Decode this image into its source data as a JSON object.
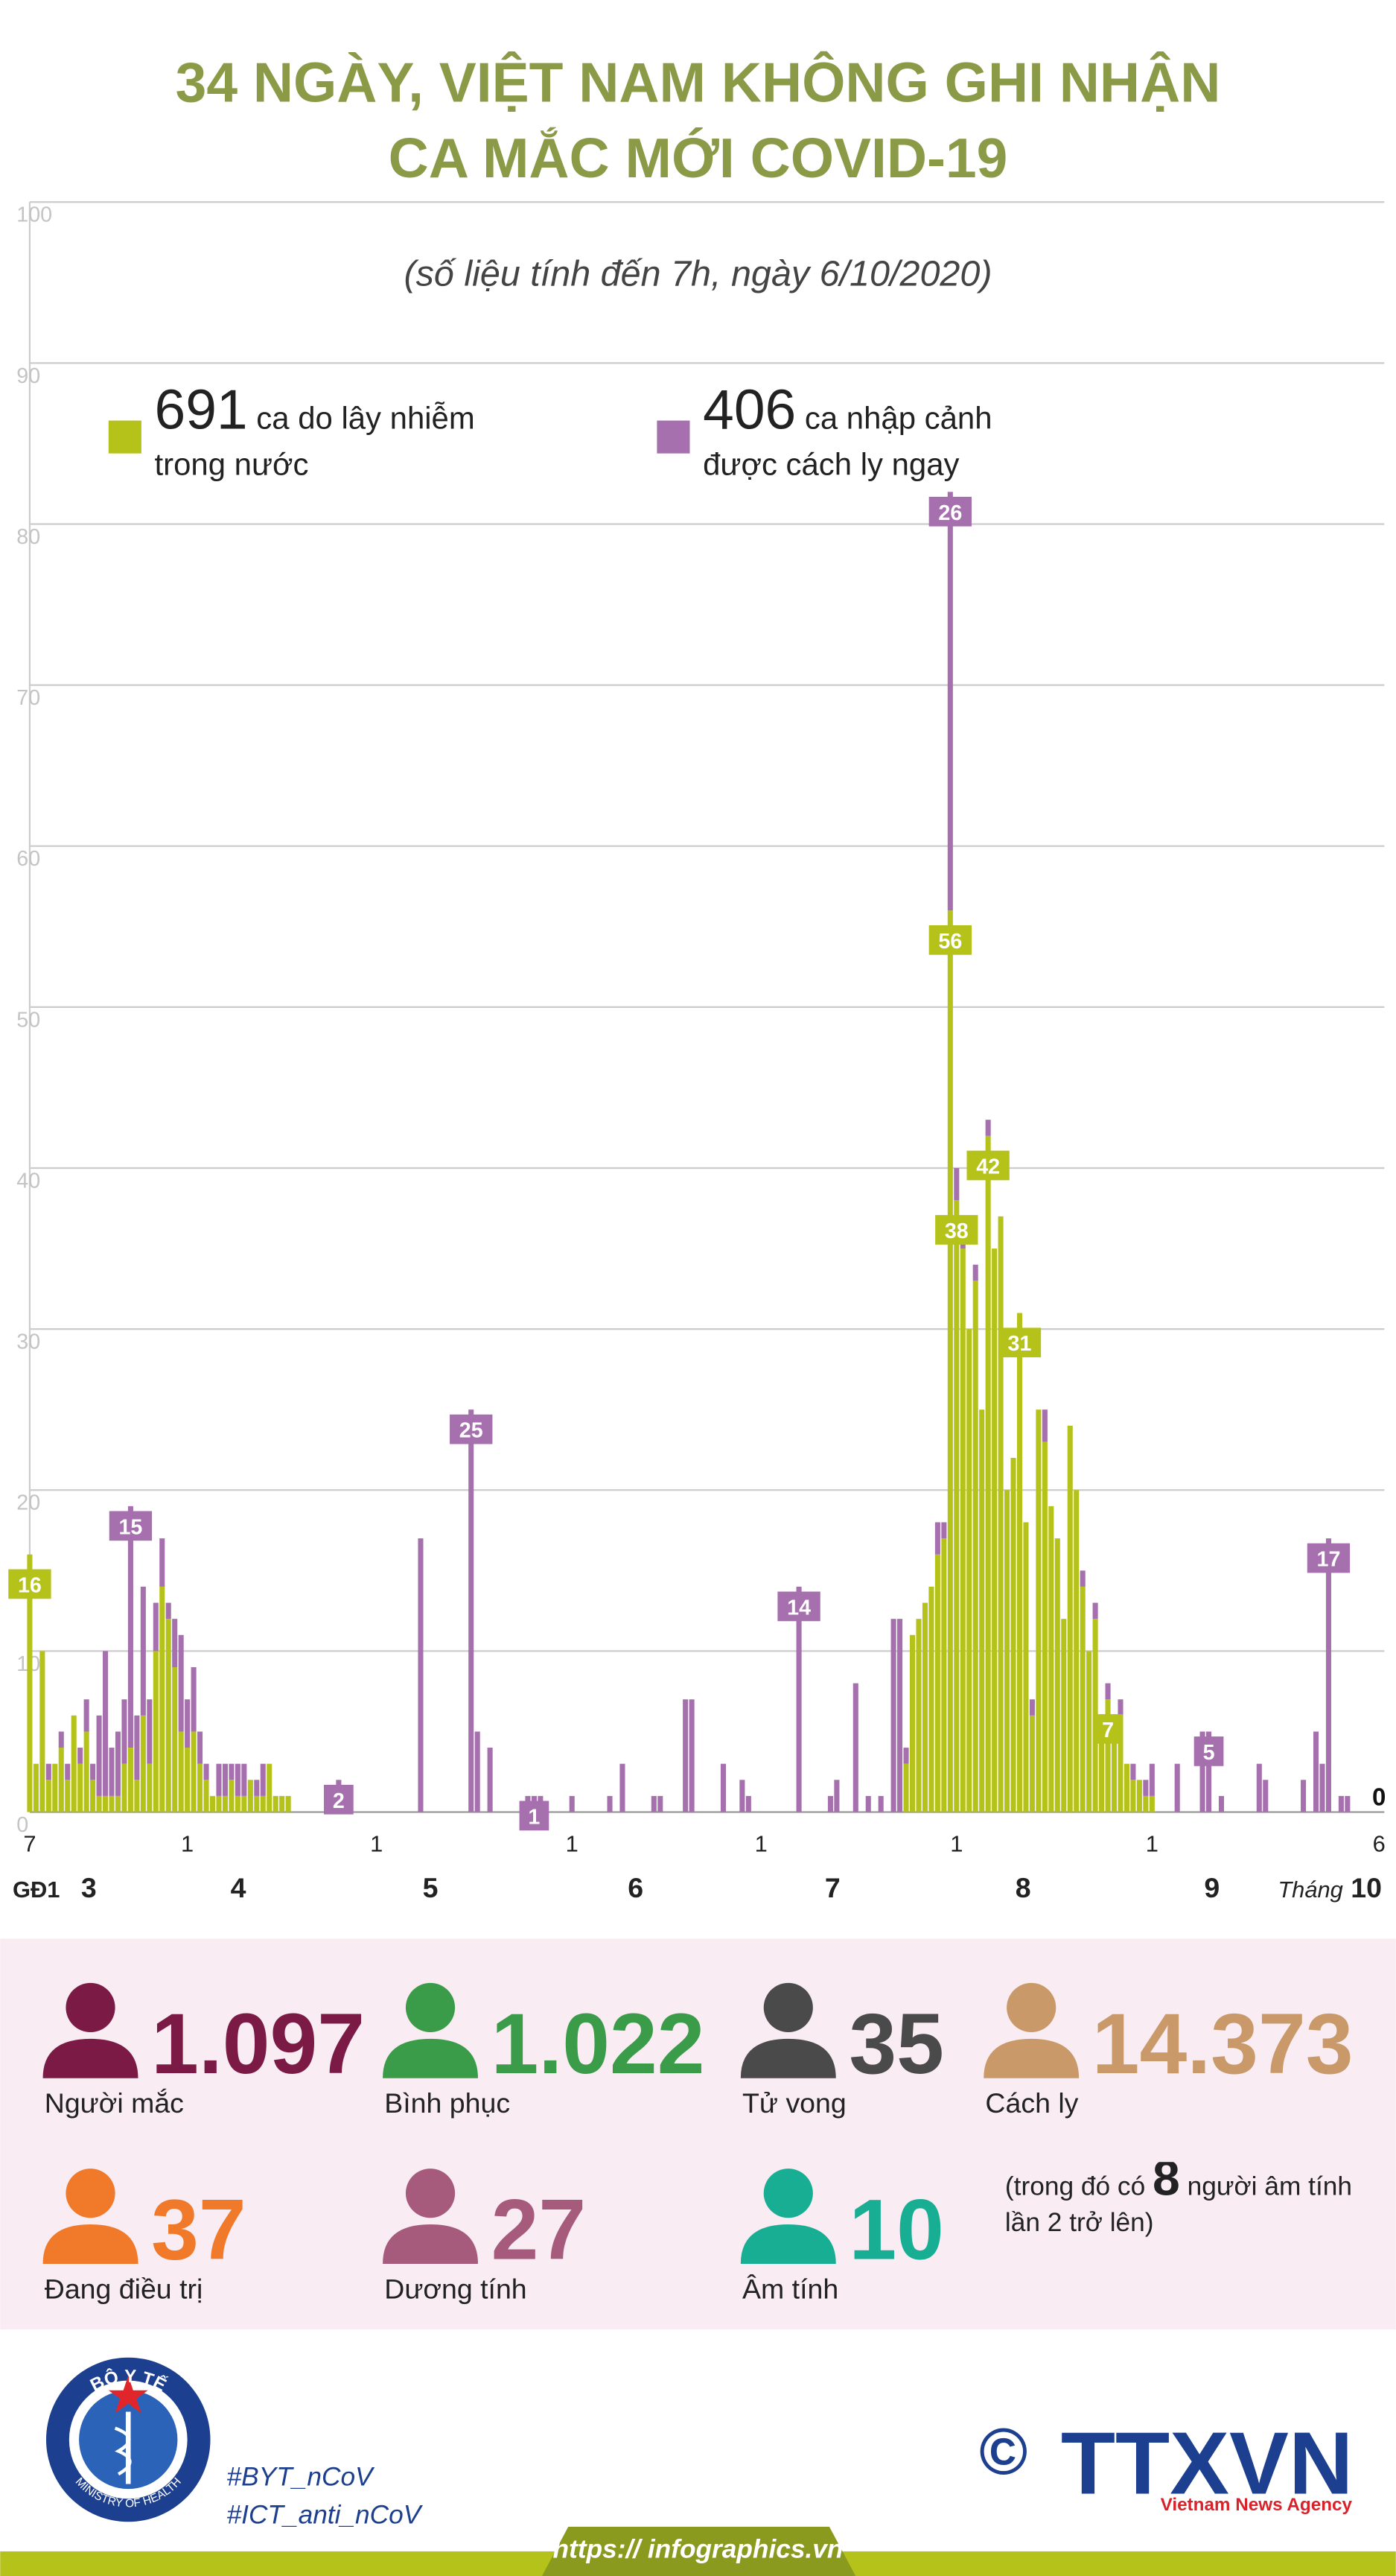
{
  "chart_data": {
    "type": "stacked_bar",
    "title": [
      "34 NGÀY, VIỆT NAM KHÔNG GHI NHẬN",
      "CA MẮC MỚI COVID-19"
    ],
    "subtitle": "(số liệu tính đến 7h, ngày 6/10/2020)",
    "ylim": [
      0,
      100
    ],
    "yticks": [
      0,
      10,
      20,
      30,
      40,
      50,
      60,
      70,
      80,
      90,
      100
    ],
    "grid": true,
    "month_labels": [
      "GĐ1",
      "3",
      "4",
      "5",
      "6",
      "7",
      "8",
      "9",
      "Tháng",
      "10"
    ],
    "categories": [
      "7",
      null,
      null,
      null,
      null,
      null,
      null,
      null,
      null,
      null,
      null,
      null,
      null,
      null,
      null,
      null,
      null,
      null,
      null,
      null,
      null,
      null,
      null,
      null,
      null,
      "1",
      null,
      null,
      null,
      null,
      null,
      null,
      null,
      null,
      null,
      null,
      null,
      null,
      null,
      null,
      null,
      null,
      null,
      null,
      null,
      null,
      null,
      null,
      null,
      null,
      null,
      null,
      null,
      null,
      null,
      "1",
      null,
      null,
      null,
      null,
      null,
      null,
      null,
      null,
      null,
      null,
      null,
      null,
      null,
      null,
      null,
      null,
      null,
      null,
      null,
      null,
      null,
      null,
      null,
      null,
      null,
      null,
      null,
      null,
      null,
      null,
      "1",
      null,
      null,
      null,
      null,
      null,
      null,
      null,
      null,
      null,
      null,
      null,
      null,
      null,
      null,
      null,
      null,
      null,
      null,
      null,
      null,
      null,
      null,
      null,
      null,
      null,
      null,
      null,
      null,
      null,
      "1",
      null,
      null,
      null,
      null,
      null,
      null,
      null,
      null,
      null,
      null,
      null,
      null,
      null,
      null,
      null,
      null,
      null,
      null,
      null,
      null,
      null,
      null,
      null,
      null,
      null,
      null,
      null,
      null,
      null,
      null,
      "1",
      null,
      null,
      null,
      null,
      null,
      null,
      null,
      null,
      null,
      null,
      null,
      null,
      null,
      null,
      null,
      null,
      null,
      null,
      null,
      null,
      null,
      null,
      null,
      null,
      null,
      null,
      null,
      null,
      null,
      null,
      "1",
      null,
      null,
      null,
      null,
      null,
      null,
      null,
      null,
      null,
      null,
      null,
      null,
      null,
      null,
      null,
      null,
      null,
      null,
      null,
      null,
      null,
      null,
      null,
      null,
      null,
      null,
      null,
      null,
      null,
      null,
      null,
      null,
      null,
      null,
      null,
      "6"
    ],
    "series": [
      {
        "name": "ca do lây nhiễm trong nước",
        "total": 691,
        "color": "#b5c21a",
        "values": [
          16,
          3,
          10,
          2,
          3,
          4,
          2,
          6,
          3,
          5,
          2,
          1,
          1,
          1,
          1,
          3,
          4,
          2,
          6,
          3,
          10,
          14,
          12,
          9,
          5,
          4,
          5,
          3,
          2,
          1,
          1,
          1,
          2,
          1,
          1,
          2,
          1,
          1,
          3,
          1,
          1,
          1,
          0,
          0,
          0,
          0,
          0,
          0,
          0,
          0,
          0,
          0,
          0,
          0,
          0,
          0,
          0,
          0,
          0,
          0,
          0,
          0,
          0,
          0,
          0,
          0,
          0,
          0,
          0,
          0,
          0,
          0,
          0,
          0,
          0,
          0,
          0,
          0,
          0,
          0,
          0,
          0,
          0,
          0,
          0,
          0,
          0,
          0,
          0,
          0,
          0,
          0,
          0,
          0,
          0,
          0,
          0,
          0,
          0,
          0,
          0,
          0,
          0,
          0,
          0,
          0,
          0,
          0,
          0,
          0,
          0,
          0,
          0,
          0,
          0,
          0,
          0,
          0,
          0,
          0,
          0,
          0,
          0,
          0,
          0,
          0,
          0,
          0,
          0,
          0,
          0,
          0,
          0,
          0,
          0,
          0,
          0,
          0,
          0,
          3,
          11,
          12,
          13,
          14,
          16,
          17,
          56,
          38,
          35,
          30,
          33,
          25,
          42,
          35,
          37,
          20,
          22,
          31,
          18,
          6,
          25,
          23,
          19,
          17,
          12,
          24,
          20,
          14,
          10,
          12,
          5,
          7,
          5,
          6,
          3,
          2,
          2,
          1,
          1,
          0,
          0,
          0,
          0,
          0,
          0,
          0,
          0,
          0,
          0,
          0,
          0,
          0,
          0,
          0,
          0,
          0,
          0,
          0,
          0,
          0,
          0,
          0,
          0,
          0,
          0,
          0,
          0,
          0,
          0,
          0,
          0,
          0,
          0,
          0,
          0
        ],
        "value_labels": {
          "0": "16",
          "146": "56",
          "147": "38",
          "152": "42",
          "157": "31",
          "171": "7",
          "214": "0"
        }
      },
      {
        "name": "ca nhập cảnh được cách ly ngay",
        "total": 406,
        "color": "#a66fae",
        "values": [
          0,
          0,
          0,
          1,
          0,
          1,
          1,
          0,
          1,
          2,
          1,
          5,
          9,
          3,
          4,
          4,
          15,
          4,
          8,
          4,
          3,
          3,
          1,
          3,
          6,
          3,
          4,
          2,
          1,
          0,
          2,
          2,
          1,
          2,
          2,
          0,
          1,
          2,
          0,
          0,
          0,
          0,
          0,
          0,
          0,
          0,
          0,
          0,
          0,
          2,
          0,
          0,
          0,
          0,
          0,
          0,
          0,
          0,
          0,
          0,
          0,
          0,
          17,
          0,
          0,
          0,
          0,
          0,
          0,
          0,
          25,
          5,
          0,
          4,
          0,
          0,
          0,
          0,
          0,
          1,
          1,
          1,
          0,
          0,
          0,
          0,
          1,
          0,
          0,
          0,
          0,
          0,
          1,
          0,
          3,
          0,
          0,
          0,
          0,
          1,
          1,
          0,
          0,
          0,
          7,
          7,
          0,
          0,
          0,
          0,
          3,
          0,
          0,
          2,
          1,
          0,
          0,
          0,
          0,
          0,
          0,
          0,
          14,
          0,
          0,
          0,
          0,
          1,
          2,
          0,
          0,
          8,
          0,
          1,
          0,
          1,
          0,
          12,
          12,
          1,
          0,
          0,
          0,
          0,
          2,
          1,
          26,
          2,
          2,
          0,
          1,
          0,
          1,
          0,
          0,
          0,
          0,
          0,
          0,
          1,
          0,
          2,
          0,
          0,
          0,
          0,
          0,
          1,
          0,
          1,
          0,
          1,
          0,
          1,
          0,
          1,
          0,
          1,
          2,
          0,
          0,
          0,
          3,
          0,
          0,
          0,
          5,
          5,
          0,
          1,
          0,
          0,
          0,
          0,
          0,
          3,
          2,
          0,
          0,
          0,
          0,
          0,
          2,
          0,
          5,
          3,
          17,
          0,
          1,
          1,
          0,
          0,
          0,
          0,
          0
        ],
        "value_labels": {
          "16": "15",
          "49": "2",
          "70": "25",
          "80": "1",
          "122": "14",
          "146": "26",
          "187": "5",
          "206": "17"
        }
      }
    ]
  },
  "stats": [
    {
      "value": "1.097",
      "label": "Người mắc",
      "color": "#7b1a45"
    },
    {
      "value": "1.022",
      "label": "Bình phục",
      "color": "#3a9b48"
    },
    {
      "value": "35",
      "label": "Tử vong",
      "color": "#4a4a4a"
    },
    {
      "value": "14.373",
      "label": "Cách ly",
      "color": "#c9996a"
    },
    {
      "value": "37",
      "label": "Đang điều trị",
      "color": "#f07a2a"
    },
    {
      "value": "27",
      "label": "Dương tính",
      "color": "#a65a7c"
    },
    {
      "value": "10",
      "label": "Âm tính",
      "color": "#18ae93"
    }
  ],
  "note": {
    "before": "(trong đó có",
    "number": "8",
    "after": "người âm tính lần 2 trở lên)"
  },
  "footer": {
    "logo_top": "BỘ Y TẾ",
    "logo_bottom": "MINISTRY OF HEALTH",
    "hashtags": [
      "#BYT_nCoV",
      "#ICT_anti_nCoV"
    ],
    "copyright": "©",
    "agency": "TTXVN",
    "agency_en": "Vietnam News Agency",
    "url": "https:// infographics.vn"
  }
}
